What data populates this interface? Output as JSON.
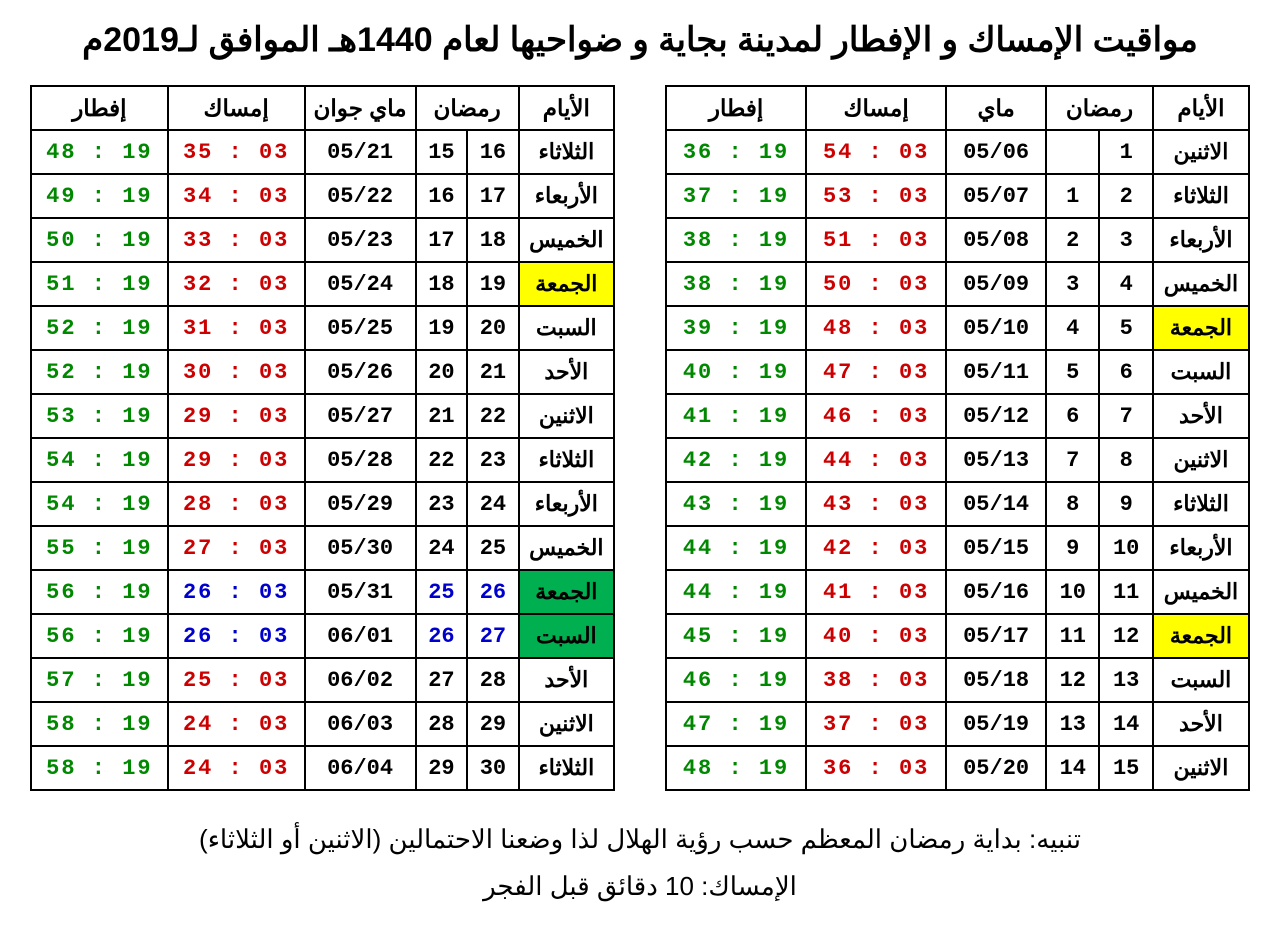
{
  "title": "مواقيت الإمساك و الإفطار لمدينة بجاية و ضواحيها لعام 1440هـ الموافق لـ2019م",
  "headers": {
    "iftar": "إفطار",
    "imsak": "إمساك",
    "may": "ماي",
    "may_june": "ماي جوان",
    "ramadan": "رمضان",
    "days": "الأيام"
  },
  "table1": {
    "rows": [
      {
        "iftar": "19 : 36",
        "imsak": "03 : 54",
        "date": "05/06",
        "r1": "",
        "r2": "1",
        "day": "الاثنين"
      },
      {
        "iftar": "19 : 37",
        "imsak": "03 : 53",
        "date": "05/07",
        "r1": "1",
        "r2": "2",
        "day": "الثلاثاء"
      },
      {
        "iftar": "19 : 38",
        "imsak": "03 : 51",
        "date": "05/08",
        "r1": "2",
        "r2": "3",
        "day": "الأربعاء"
      },
      {
        "iftar": "19 : 38",
        "imsak": "03 : 50",
        "date": "05/09",
        "r1": "3",
        "r2": "4",
        "day": "الخميس"
      },
      {
        "iftar": "19 : 39",
        "imsak": "03 : 48",
        "date": "05/10",
        "r1": "4",
        "r2": "5",
        "day": "الجمعة",
        "hl": "yellow"
      },
      {
        "iftar": "19 : 40",
        "imsak": "03 : 47",
        "date": "05/11",
        "r1": "5",
        "r2": "6",
        "day": "السبت"
      },
      {
        "iftar": "19 : 41",
        "imsak": "03 : 46",
        "date": "05/12",
        "r1": "6",
        "r2": "7",
        "day": "الأحد"
      },
      {
        "iftar": "19 : 42",
        "imsak": "03 : 44",
        "date": "05/13",
        "r1": "7",
        "r2": "8",
        "day": "الاثنين"
      },
      {
        "iftar": "19 : 43",
        "imsak": "03 : 43",
        "date": "05/14",
        "r1": "8",
        "r2": "9",
        "day": "الثلاثاء"
      },
      {
        "iftar": "19 : 44",
        "imsak": "03 : 42",
        "date": "05/15",
        "r1": "9",
        "r2": "10",
        "day": "الأربعاء"
      },
      {
        "iftar": "19 : 44",
        "imsak": "03 : 41",
        "date": "05/16",
        "r1": "10",
        "r2": "11",
        "day": "الخميس"
      },
      {
        "iftar": "19 : 45",
        "imsak": "03 : 40",
        "date": "05/17",
        "r1": "11",
        "r2": "12",
        "day": "الجمعة",
        "hl": "yellow"
      },
      {
        "iftar": "19 : 46",
        "imsak": "03 : 38",
        "date": "05/18",
        "r1": "12",
        "r2": "13",
        "day": "السبت"
      },
      {
        "iftar": "19 : 47",
        "imsak": "03 : 37",
        "date": "05/19",
        "r1": "13",
        "r2": "14",
        "day": "الأحد"
      },
      {
        "iftar": "19 : 48",
        "imsak": "03 : 36",
        "date": "05/20",
        "r1": "14",
        "r2": "15",
        "day": "الاثنين"
      }
    ]
  },
  "table2": {
    "rows": [
      {
        "iftar": "19 : 48",
        "imsak": "03 : 35",
        "date": "05/21",
        "r1": "15",
        "r2": "16",
        "day": "الثلاثاء"
      },
      {
        "iftar": "19 : 49",
        "imsak": "03 : 34",
        "date": "05/22",
        "r1": "16",
        "r2": "17",
        "day": "الأربعاء"
      },
      {
        "iftar": "19 : 50",
        "imsak": "03 : 33",
        "date": "05/23",
        "r1": "17",
        "r2": "18",
        "day": "الخميس"
      },
      {
        "iftar": "19 : 51",
        "imsak": "03 : 32",
        "date": "05/24",
        "r1": "18",
        "r2": "19",
        "day": "الجمعة",
        "hl": "yellow"
      },
      {
        "iftar": "19 : 52",
        "imsak": "03 : 31",
        "date": "05/25",
        "r1": "19",
        "r2": "20",
        "day": "السبت"
      },
      {
        "iftar": "19 : 52",
        "imsak": "03 : 30",
        "date": "05/26",
        "r1": "20",
        "r2": "21",
        "day": "الأحد"
      },
      {
        "iftar": "19 : 53",
        "imsak": "03 : 29",
        "date": "05/27",
        "r1": "21",
        "r2": "22",
        "day": "الاثنين"
      },
      {
        "iftar": "19 : 54",
        "imsak": "03 : 29",
        "date": "05/28",
        "r1": "22",
        "r2": "23",
        "day": "الثلاثاء"
      },
      {
        "iftar": "19 : 54",
        "imsak": "03 : 28",
        "date": "05/29",
        "r1": "23",
        "r2": "24",
        "day": "الأربعاء"
      },
      {
        "iftar": "19 : 55",
        "imsak": "03 : 27",
        "date": "05/30",
        "r1": "24",
        "r2": "25",
        "day": "الخميس"
      },
      {
        "iftar": "19 : 56",
        "imsak": "03 : 26",
        "date": "05/31",
        "r1": "25",
        "r2": "26",
        "day": "الجمعة",
        "hl": "green",
        "blue": true
      },
      {
        "iftar": "19 : 56",
        "imsak": "03 : 26",
        "date": "06/01",
        "r1": "26",
        "r2": "27",
        "day": "السبت",
        "hl": "green",
        "blue": true
      },
      {
        "iftar": "19 : 57",
        "imsak": "03 : 25",
        "date": "06/02",
        "r1": "27",
        "r2": "28",
        "day": "الأحد"
      },
      {
        "iftar": "19 : 58",
        "imsak": "03 : 24",
        "date": "06/03",
        "r1": "28",
        "r2": "29",
        "day": "الاثنين"
      },
      {
        "iftar": "19 : 58",
        "imsak": "03 : 24",
        "date": "06/04",
        "r1": "29",
        "r2": "30",
        "day": "الثلاثاء"
      }
    ]
  },
  "footer": {
    "line1": "تنبيه: بداية رمضان المعظم حسب رؤية الهلال لذا وضعنا الاحتمالين (الاثنين أو الثلاثاء)",
    "line2": "الإمساك: 10 دقائق قبل الفجر"
  },
  "style": {
    "iftar_color": "#008800",
    "imsak_color": "#cc0000",
    "blue_color": "#0000cc",
    "hl_yellow": "#ffff00",
    "hl_green": "#00b050",
    "border_color": "#000000",
    "background": "#ffffff"
  }
}
